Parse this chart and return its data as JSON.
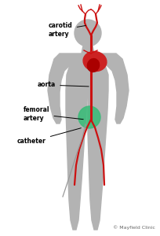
{
  "bg_color": "#ffffff",
  "body_color": "#b3b3b3",
  "artery_color": "#cc1111",
  "heart_color": "#cc2222",
  "heart_dark_color": "#aa0000",
  "green_circle_color": "#3dbb7a",
  "figure_size": [
    2.04,
    3.0
  ],
  "dpi": 100,
  "labels": {
    "carotid_artery": "carotid\nartery",
    "aorta": "aorta",
    "femoral_artery": "femoral\nartery",
    "catheter": "catheter",
    "copyright": "© Mayfield Clinic"
  },
  "label_fontsize": 5.5,
  "copyright_fontsize": 4.5,
  "lw_main": 2.2,
  "lw_branch": 1.6,
  "lw_small": 1.0
}
